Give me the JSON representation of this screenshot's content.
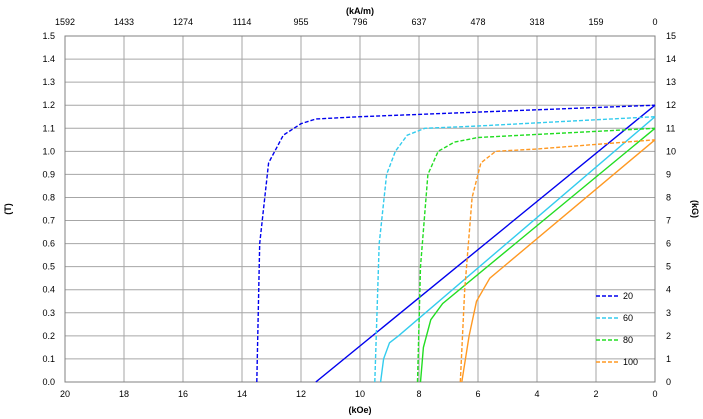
{
  "chart_data": {
    "type": "line",
    "title": "",
    "axes": {
      "x_bottom": {
        "label": "(kOe)",
        "range": [
          20,
          0
        ],
        "ticks": [
          "20",
          "18",
          "16",
          "14",
          "12",
          "10",
          "8",
          "6",
          "4",
          "2",
          "0"
        ],
        "reversed": true
      },
      "x_top": {
        "label": "(kA/m)",
        "ticks": [
          "1592",
          "1433",
          "1274",
          "1114",
          "955",
          "796",
          "637",
          "478",
          "318",
          "159",
          "0"
        ]
      },
      "y_left": {
        "label": "(T)",
        "range": [
          0,
          1.5
        ],
        "ticks": [
          "0.0",
          "0.1",
          "0.2",
          "0.3",
          "0.4",
          "0.5",
          "0.6",
          "0.7",
          "0.8",
          "0.9",
          "1.0",
          "1.1",
          "1.2",
          "1.3",
          "1.4",
          "1.5"
        ]
      },
      "y_right": {
        "label": "(kG)",
        "range": [
          0,
          15
        ],
        "ticks": [
          "0",
          "1",
          "2",
          "3",
          "4",
          "5",
          "6",
          "7",
          "8",
          "9",
          "10",
          "11",
          "12",
          "13",
          "14",
          "15"
        ]
      }
    },
    "grid": true,
    "legend": {
      "placement": "bottom-right"
    },
    "series": [
      {
        "name": "20",
        "color": "#0000ee",
        "J_curve": [
          [
            13.5,
            0.0
          ],
          [
            13.4,
            0.6
          ],
          [
            13.1,
            0.95
          ],
          [
            12.6,
            1.07
          ],
          [
            12.0,
            1.12
          ],
          [
            11.5,
            1.14
          ],
          [
            10.0,
            1.15
          ],
          [
            6.0,
            1.17
          ],
          [
            2.0,
            1.19
          ],
          [
            0.0,
            1.2
          ]
        ],
        "B_curve": [
          [
            11.5,
            0.0
          ],
          [
            0.0,
            1.2
          ]
        ]
      },
      {
        "name": "60",
        "color": "#33ccee",
        "J_curve": [
          [
            9.5,
            0.0
          ],
          [
            9.35,
            0.6
          ],
          [
            9.1,
            0.9
          ],
          [
            8.8,
            1.0
          ],
          [
            8.4,
            1.07
          ],
          [
            7.8,
            1.1
          ],
          [
            6.0,
            1.11
          ],
          [
            3.0,
            1.13
          ],
          [
            0.0,
            1.15
          ]
        ],
        "B_curve": [
          [
            9.3,
            0.0
          ],
          [
            9.2,
            0.1
          ],
          [
            9.0,
            0.17
          ],
          [
            8.7,
            0.2
          ],
          [
            0.0,
            1.15
          ]
        ]
      },
      {
        "name": "80",
        "color": "#22dd22",
        "J_curve": [
          [
            8.05,
            0.0
          ],
          [
            7.95,
            0.5
          ],
          [
            7.7,
            0.9
          ],
          [
            7.35,
            1.0
          ],
          [
            6.8,
            1.04
          ],
          [
            6.0,
            1.06
          ],
          [
            3.0,
            1.08
          ],
          [
            0.0,
            1.1
          ]
        ],
        "B_curve": [
          [
            7.95,
            0.0
          ],
          [
            7.85,
            0.15
          ],
          [
            7.6,
            0.27
          ],
          [
            7.2,
            0.34
          ],
          [
            0.0,
            1.1
          ]
        ]
      },
      {
        "name": "100",
        "color": "#ff9922",
        "J_curve": [
          [
            6.6,
            0.0
          ],
          [
            6.45,
            0.4
          ],
          [
            6.2,
            0.8
          ],
          [
            5.9,
            0.95
          ],
          [
            5.4,
            1.0
          ],
          [
            4.0,
            1.01
          ],
          [
            2.0,
            1.03
          ],
          [
            0.0,
            1.05
          ]
        ],
        "B_curve": [
          [
            6.55,
            0.0
          ],
          [
            6.3,
            0.2
          ],
          [
            6.05,
            0.35
          ],
          [
            5.6,
            0.45
          ],
          [
            0.0,
            1.05
          ]
        ]
      }
    ]
  }
}
